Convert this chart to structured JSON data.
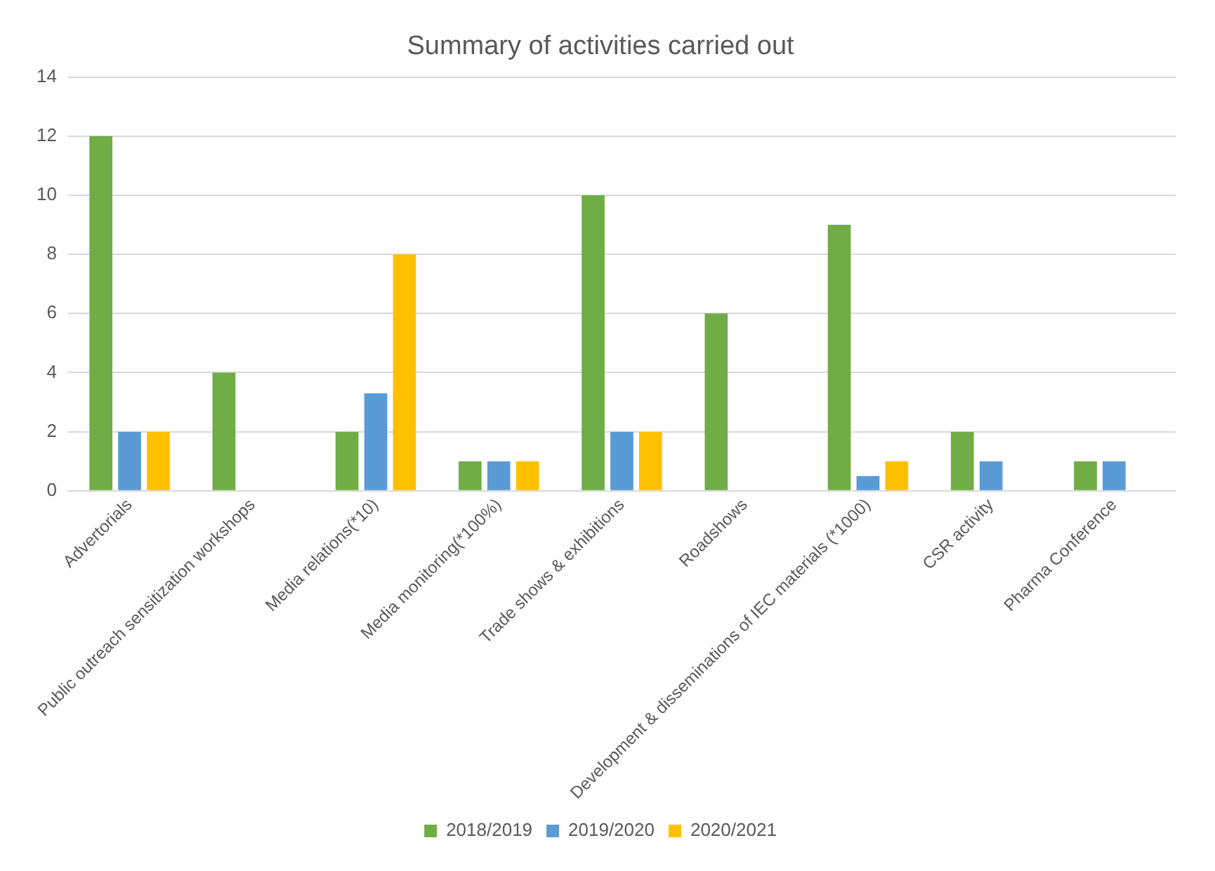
{
  "chart_data": {
    "type": "bar",
    "title": "Summary of activities carried out",
    "categories": [
      "Advertorials",
      "Public outreach sensitization workshops",
      "Media relations(*10)",
      "Media monitoring(*100%)",
      "Trade shows & exhibitions",
      "Roadshows",
      "Development & disseminations of IEC materials (*1000)",
      "CSR activity",
      "Pharma Conference"
    ],
    "series": [
      {
        "name": "2018/2019",
        "color": "#70ad47",
        "values": [
          12,
          4,
          2,
          1,
          10,
          6,
          9,
          2,
          1
        ]
      },
      {
        "name": "2019/2020",
        "color": "#5b9bd5",
        "values": [
          2,
          null,
          3.3,
          1,
          2,
          null,
          0.5,
          1,
          1
        ]
      },
      {
        "name": "2020/2021",
        "color": "#ffc000",
        "values": [
          2,
          null,
          8,
          1,
          2,
          null,
          1,
          null,
          null
        ]
      }
    ],
    "ylim": [
      0,
      14
    ],
    "yticks": [
      0,
      2,
      4,
      6,
      8,
      10,
      12,
      14
    ],
    "grid": "y",
    "legend": "bottom"
  }
}
